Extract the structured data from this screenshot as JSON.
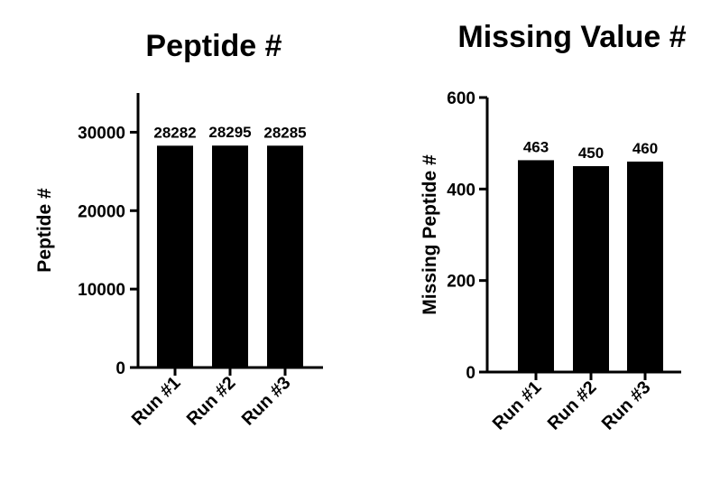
{
  "chart_data": [
    {
      "type": "bar",
      "title": "Peptide #",
      "xlabel": "",
      "ylabel": "Peptide #",
      "categories": [
        "Run #1",
        "Run #2",
        "Run #3"
      ],
      "values": [
        28282,
        28295,
        28285
      ],
      "data_labels": [
        "28282",
        "28295",
        "28285"
      ],
      "ylim": [
        0,
        35000
      ],
      "yticks": [
        0,
        10000,
        20000,
        30000
      ],
      "ytick_labels": [
        "0",
        "10000",
        "20000",
        "30000"
      ],
      "bar_color": "#000000",
      "grid": false,
      "legend": "none"
    },
    {
      "type": "bar",
      "title": "Missing Value #",
      "xlabel": "",
      "ylabel": "Missing Peptide #",
      "categories": [
        "Run #1",
        "Run #2",
        "Run #3"
      ],
      "values": [
        463,
        450,
        460
      ],
      "data_labels": [
        "463",
        "450",
        "460"
      ],
      "ylim": [
        0,
        600
      ],
      "yticks": [
        0,
        200,
        400,
        600
      ],
      "ytick_labels": [
        "0",
        "200",
        "400",
        "600"
      ],
      "bar_color": "#000000",
      "grid": false,
      "legend": "none"
    }
  ]
}
